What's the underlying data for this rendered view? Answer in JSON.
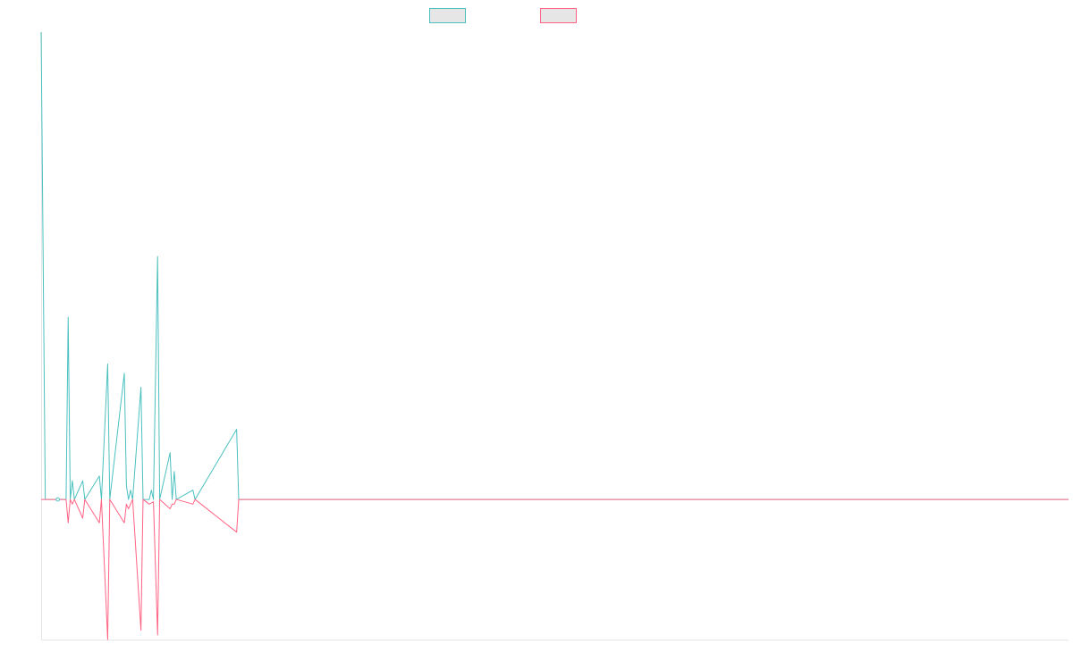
{
  "chart_data": {
    "type": "line",
    "title": "",
    "xlabel": "",
    "ylabel": "",
    "grid": false,
    "legend": "top-center",
    "xlim": [
      0,
      247
    ],
    "ylim": [
      -0.3,
      1.0
    ],
    "x_ticks_visible": false,
    "y_ticks_visible": false,
    "series": [
      {
        "color": "#4bc0c0",
        "legend_fill": "#e6e6e6",
        "points": [
          [
            0,
            1.0
          ],
          [
            1,
            0.0
          ],
          [
            4,
            0.0
          ],
          [
            6,
            0.0
          ],
          [
            6.5,
            0.39
          ],
          [
            7,
            0.0
          ],
          [
            7.5,
            0.04
          ],
          [
            8,
            0.0
          ],
          [
            10,
            0.04
          ],
          [
            10.5,
            0.0
          ],
          [
            14,
            0.05
          ],
          [
            14.5,
            0.0
          ],
          [
            16,
            0.29
          ],
          [
            16.5,
            0.0
          ],
          [
            20,
            0.27
          ],
          [
            20.5,
            0.03
          ],
          [
            21,
            0.0
          ],
          [
            21.5,
            0.02
          ],
          [
            22,
            0.0
          ],
          [
            24,
            0.24
          ],
          [
            24.5,
            0.0
          ],
          [
            26,
            0.0
          ],
          [
            26.5,
            0.02
          ],
          [
            27,
            0.0
          ],
          [
            28,
            0.52
          ],
          [
            28.5,
            0.0
          ],
          [
            31,
            0.1
          ],
          [
            31.5,
            0.0
          ],
          [
            32,
            0.06
          ],
          [
            32.5,
            0.0
          ],
          [
            36.5,
            0.02
          ],
          [
            37,
            0.0
          ],
          [
            47,
            0.15
          ],
          [
            47.5,
            0.0
          ],
          [
            247,
            0.0
          ]
        ]
      },
      {
        "color": "#ff6384",
        "legend_fill": "#e6e6e6",
        "points": [
          [
            0,
            0.0
          ],
          [
            6,
            0.0
          ],
          [
            6.5,
            -0.05
          ],
          [
            7,
            0.0
          ],
          [
            7.5,
            -0.01
          ],
          [
            8,
            0.0
          ],
          [
            10,
            -0.04
          ],
          [
            10.5,
            0.0
          ],
          [
            14,
            -0.05
          ],
          [
            14.5,
            0.0
          ],
          [
            16,
            -0.3
          ],
          [
            16.5,
            0.0
          ],
          [
            20,
            -0.05
          ],
          [
            20.5,
            -0.01
          ],
          [
            21,
            -0.02
          ],
          [
            21.5,
            -0.01
          ],
          [
            22,
            0.0
          ],
          [
            24,
            -0.28
          ],
          [
            24.5,
            0.0
          ],
          [
            26,
            -0.01
          ],
          [
            27,
            -0.005
          ],
          [
            28,
            -0.29
          ],
          [
            28.5,
            0.0
          ],
          [
            31,
            -0.02
          ],
          [
            31.5,
            -0.01
          ],
          [
            32,
            -0.01
          ],
          [
            32.5,
            0.0
          ],
          [
            36.5,
            -0.01
          ],
          [
            37,
            0.0
          ],
          [
            47,
            -0.07
          ],
          [
            47.5,
            0.0
          ],
          [
            247,
            0.0
          ]
        ]
      }
    ]
  }
}
